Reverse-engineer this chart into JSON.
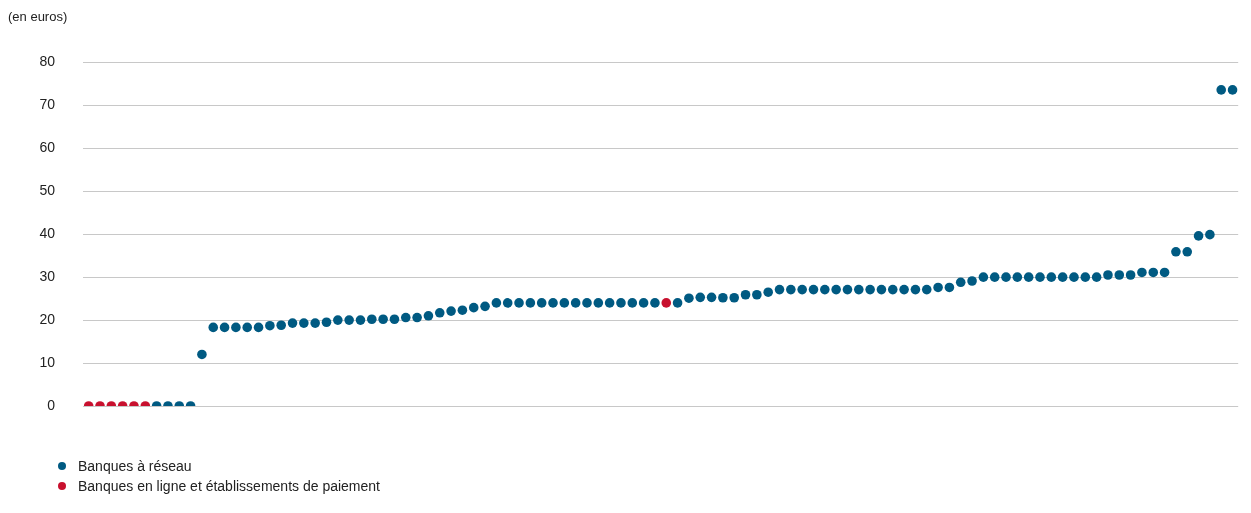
{
  "chart_data": {
    "type": "scatter",
    "ylabel": "(en euros)",
    "categories": [
      null,
      null,
      null,
      null,
      null,
      null,
      null,
      null,
      null,
      null,
      null,
      null,
      null,
      null,
      null,
      null,
      null,
      null,
      null,
      null,
      null,
      null,
      null,
      null,
      null,
      null,
      null,
      null,
      null,
      null,
      null,
      null,
      null,
      null,
      null,
      null,
      null,
      null,
      null,
      null,
      null,
      null,
      null,
      null,
      null,
      null,
      null,
      null,
      null,
      null,
      null,
      null,
      null,
      null,
      null,
      null,
      null,
      null,
      null,
      null,
      null,
      null,
      null,
      null,
      null,
      null,
      null,
      null,
      null,
      null,
      null,
      null,
      null,
      null,
      null,
      null,
      null,
      null,
      null,
      null,
      null,
      null,
      null,
      null,
      null,
      null,
      null,
      null,
      null,
      null,
      null,
      null,
      null,
      null,
      null,
      null,
      null,
      null,
      null,
      null,
      null,
      null
    ],
    "series": [
      {
        "name": "Banques à réseau",
        "color": "#005a82",
        "values": [
          null,
          null,
          null,
          null,
          null,
          null,
          0,
          0,
          0,
          0,
          12,
          18.3,
          18.3,
          18.3,
          18.3,
          18.3,
          18.7,
          18.8,
          19.3,
          19.3,
          19.3,
          19.5,
          20,
          20,
          20,
          20.2,
          20.2,
          20.2,
          20.6,
          20.6,
          21,
          21.7,
          22.1,
          22.3,
          22.9,
          23.2,
          24,
          24,
          24,
          24,
          24,
          24,
          24,
          24,
          24,
          24,
          24,
          24,
          24,
          24,
          24,
          null,
          24,
          25.1,
          25.3,
          25.3,
          25.2,
          25.2,
          25.9,
          25.9,
          26.5,
          27.1,
          27.1,
          27.1,
          27.1,
          27.1,
          27.1,
          27.1,
          27.1,
          27.1,
          27.1,
          27.1,
          27.1,
          27.1,
          27.1,
          27.6,
          27.6,
          28.8,
          29.1,
          30,
          30,
          30,
          30,
          30,
          30,
          30,
          30,
          30,
          30,
          30,
          30.5,
          30.5,
          30.5,
          31.1,
          31.1,
          31.1,
          35.9,
          35.9,
          39.6,
          39.9,
          73.6,
          73.6
        ]
      },
      {
        "name": "Banques en ligne et établissements de paiement",
        "color": "#c8102e",
        "values": [
          0,
          0,
          0,
          0,
          0,
          0,
          null,
          null,
          null,
          null,
          null,
          null,
          null,
          null,
          null,
          null,
          null,
          null,
          null,
          null,
          null,
          null,
          null,
          null,
          null,
          null,
          null,
          null,
          null,
          null,
          null,
          null,
          null,
          null,
          null,
          null,
          null,
          null,
          null,
          null,
          null,
          null,
          null,
          null,
          null,
          null,
          null,
          null,
          null,
          null,
          null,
          24,
          null,
          null,
          null,
          null,
          null,
          null,
          null,
          null,
          null,
          null,
          null,
          null,
          null,
          null,
          null,
          null,
          null,
          null,
          null,
          null,
          null,
          null,
          null,
          null,
          null,
          null,
          null,
          null,
          null,
          null,
          null,
          null,
          null,
          null,
          null,
          null,
          null,
          null,
          null,
          null,
          null,
          null,
          null,
          null,
          null,
          null,
          null,
          null,
          null,
          null
        ]
      }
    ],
    "ylim": [
      0,
      80
    ],
    "yticks": [
      0,
      10,
      20,
      30,
      40,
      50,
      60,
      70,
      80
    ],
    "grid": "y",
    "legend": "bottom",
    "tick_labels": "y",
    "marker": "circle"
  }
}
